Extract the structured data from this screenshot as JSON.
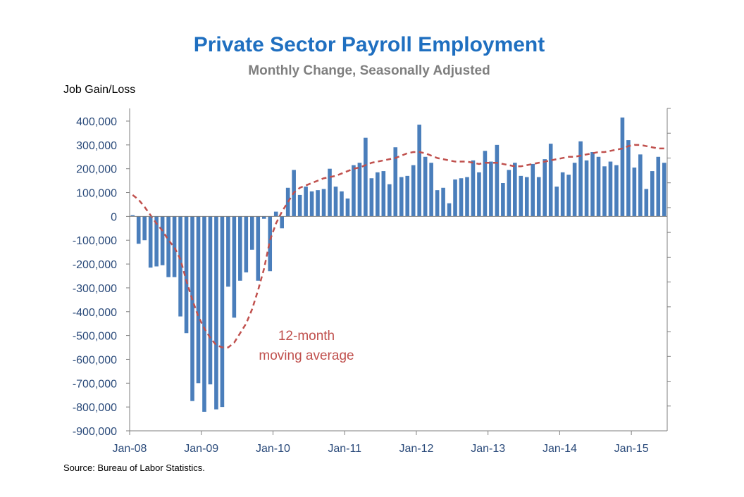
{
  "colors": {
    "title": "#1f6fc0",
    "subtitle": "#7f7f7f",
    "bar": "#4a7ebb",
    "avg": "#c0504d",
    "tick": "#2a4a7a",
    "axis": "#7f7f7f",
    "text": "#000000"
  },
  "chart_data": {
    "type": "bar",
    "title": "Private Sector Payroll Employment",
    "subtitle": "Monthly Change, Seasonally Adjusted",
    "ylabel": "Job Gain/Loss",
    "source": "Source: Bureau of Labor Statistics.",
    "ylim": [
      -900000,
      400000
    ],
    "ytick_values": [
      400000,
      300000,
      200000,
      100000,
      0,
      -100000,
      -200000,
      -300000,
      -400000,
      -500000,
      -600000,
      -700000,
      -800000,
      -900000
    ],
    "ytick_labels": [
      "400,000",
      "300,000",
      "200,000",
      "100,000",
      "0",
      "-100,000",
      "-200,000",
      "-300,000",
      "-400,000",
      "-500,000",
      "-600,000",
      "-700,000",
      "-800,000",
      "-900,000"
    ],
    "xtick_labels": [
      "Jan-08",
      "Jan-09",
      "Jan-10",
      "Jan-11",
      "Jan-12",
      "Jan-13",
      "Jan-14",
      "Jan-15"
    ],
    "annotation": [
      "12-month",
      "moving average"
    ],
    "series": [
      {
        "name": "Monthly change",
        "values": [
          5000,
          -115000,
          -100000,
          -215000,
          -210000,
          -205000,
          -255000,
          -255000,
          -420000,
          -490000,
          -775000,
          -700000,
          -820000,
          -705000,
          -810000,
          -800000,
          -295000,
          -425000,
          -270000,
          -235000,
          -140000,
          -270000,
          -10000,
          -230000,
          20000,
          -50000,
          120000,
          195000,
          90000,
          125000,
          105000,
          110000,
          115000,
          200000,
          125000,
          105000,
          75000,
          215000,
          225000,
          330000,
          160000,
          185000,
          190000,
          135000,
          290000,
          165000,
          170000,
          215000,
          385000,
          250000,
          225000,
          110000,
          120000,
          55000,
          155000,
          160000,
          165000,
          235000,
          185000,
          275000,
          230000,
          300000,
          140000,
          195000,
          225000,
          170000,
          165000,
          220000,
          165000,
          240000,
          305000,
          125000,
          185000,
          175000,
          225000,
          315000,
          235000,
          270000,
          250000,
          210000,
          230000,
          215000,
          415000,
          320000,
          205000,
          260000,
          115000,
          190000,
          250000,
          225000
        ]
      },
      {
        "name": "12-month moving average",
        "values": [
          90000,
          70000,
          40000,
          5000,
          -30000,
          -60000,
          -100000,
          -130000,
          -180000,
          -270000,
          -350000,
          -420000,
          -470000,
          -510000,
          -540000,
          -550000,
          -550000,
          -530000,
          -490000,
          -450000,
          -390000,
          -310000,
          -220000,
          -100000,
          -30000,
          20000,
          60000,
          100000,
          120000,
          130000,
          140000,
          150000,
          160000,
          165000,
          170000,
          180000,
          190000,
          200000,
          205000,
          215000,
          225000,
          230000,
          235000,
          240000,
          245000,
          255000,
          265000,
          270000,
          270000,
          265000,
          255000,
          245000,
          240000,
          235000,
          230000,
          230000,
          230000,
          225000,
          220000,
          225000,
          225000,
          225000,
          220000,
          215000,
          210000,
          210000,
          215000,
          220000,
          225000,
          230000,
          235000,
          240000,
          245000,
          250000,
          250000,
          255000,
          260000,
          265000,
          270000,
          270000,
          275000,
          280000,
          285000,
          295000,
          300000,
          300000,
          295000,
          290000,
          285000,
          285000
        ]
      }
    ]
  }
}
